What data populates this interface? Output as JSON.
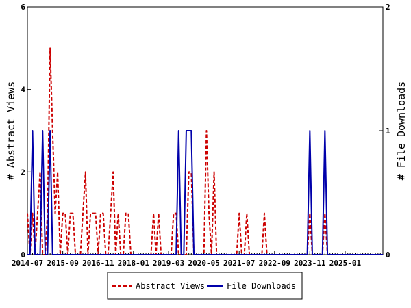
{
  "chart_data": {
    "type": "line",
    "x_tick_labels": [
      "2014-07",
      "2015-09",
      "2016-11",
      "2018-01",
      "2019-03",
      "2020-05",
      "2021-07",
      "2022-09",
      "2023-11",
      "2025-01"
    ],
    "x_tick_times": [
      "2014-07-01",
      "2015-09-01",
      "2016-11-01",
      "2018-01-01",
      "2019-03-01",
      "2020-05-01",
      "2021-07-01",
      "2022-09-01",
      "2023-11-01",
      "2025-01-01"
    ],
    "xlim": [
      "2014-07-01",
      "2026-04-01"
    ],
    "ylabel_left": "# Abstract Views",
    "ylabel_right": "# File Downloads",
    "ylim_left": [
      0,
      6
    ],
    "ylim_right": [
      0,
      2
    ],
    "yticks_left": [
      "0",
      "2",
      "4",
      "6"
    ],
    "yticks_right": [
      "0",
      "1",
      "2"
    ],
    "legend_position": "bottom",
    "series": [
      {
        "name": "Abstract Views",
        "axis": "left",
        "color": "#cc0000",
        "dash": "dashed",
        "points": [
          [
            "2014-07-01",
            1
          ],
          [
            "2014-08-01",
            0
          ],
          [
            "2014-09-01",
            1
          ],
          [
            "2014-10-01",
            0
          ],
          [
            "2014-11-01",
            1
          ],
          [
            "2014-12-01",
            2
          ],
          [
            "2015-01-01",
            0
          ],
          [
            "2015-02-01",
            0
          ],
          [
            "2015-03-01",
            1
          ],
          [
            "2015-04-01",
            5
          ],
          [
            "2015-05-01",
            3
          ],
          [
            "2015-06-01",
            1
          ],
          [
            "2015-07-01",
            2
          ],
          [
            "2015-08-01",
            0
          ],
          [
            "2015-09-01",
            1
          ],
          [
            "2015-10-01",
            1
          ],
          [
            "2015-11-01",
            0
          ],
          [
            "2015-12-01",
            1
          ],
          [
            "2016-01-01",
            1
          ],
          [
            "2016-02-01",
            0
          ],
          [
            "2016-03-01",
            0
          ],
          [
            "2016-04-01",
            0
          ],
          [
            "2016-05-01",
            1
          ],
          [
            "2016-06-01",
            2
          ],
          [
            "2016-07-01",
            0
          ],
          [
            "2016-08-01",
            1
          ],
          [
            "2016-09-01",
            1
          ],
          [
            "2016-10-01",
            1
          ],
          [
            "2016-11-01",
            0
          ],
          [
            "2016-12-01",
            1
          ],
          [
            "2017-01-01",
            1
          ],
          [
            "2017-02-01",
            0
          ],
          [
            "2017-03-01",
            0
          ],
          [
            "2017-04-01",
            1
          ],
          [
            "2017-05-01",
            2
          ],
          [
            "2017-06-01",
            0
          ],
          [
            "2017-07-01",
            1
          ],
          [
            "2017-08-01",
            0
          ],
          [
            "2017-09-01",
            0
          ],
          [
            "2017-10-01",
            1
          ],
          [
            "2017-11-01",
            1
          ],
          [
            "2017-12-01",
            0
          ],
          [
            "2018-01-01",
            0
          ],
          [
            "2018-02-01",
            0
          ],
          [
            "2018-03-01",
            0
          ],
          [
            "2018-04-01",
            0
          ],
          [
            "2018-05-01",
            0
          ],
          [
            "2018-06-01",
            0
          ],
          [
            "2018-07-01",
            0
          ],
          [
            "2018-08-01",
            0
          ],
          [
            "2018-09-01",
            1
          ],
          [
            "2018-10-01",
            0
          ],
          [
            "2018-11-01",
            1
          ],
          [
            "2018-12-01",
            0
          ],
          [
            "2019-01-01",
            0
          ],
          [
            "2019-02-01",
            0
          ],
          [
            "2019-03-01",
            0
          ],
          [
            "2019-04-01",
            0
          ],
          [
            "2019-05-01",
            1
          ],
          [
            "2019-06-01",
            1
          ],
          [
            "2019-07-01",
            0
          ],
          [
            "2019-08-01",
            0
          ],
          [
            "2019-09-01",
            0
          ],
          [
            "2019-10-01",
            0
          ],
          [
            "2019-11-01",
            2
          ],
          [
            "2019-12-01",
            2
          ],
          [
            "2020-01-01",
            0
          ],
          [
            "2020-02-01",
            0
          ],
          [
            "2020-03-01",
            0
          ],
          [
            "2020-04-01",
            0
          ],
          [
            "2020-05-01",
            0
          ],
          [
            "2020-06-01",
            3
          ],
          [
            "2020-07-01",
            1
          ],
          [
            "2020-08-01",
            0
          ],
          [
            "2020-09-01",
            2
          ],
          [
            "2020-10-01",
            0
          ],
          [
            "2020-11-01",
            0
          ],
          [
            "2020-12-01",
            0
          ],
          [
            "2021-01-01",
            0
          ],
          [
            "2021-02-01",
            0
          ],
          [
            "2021-03-01",
            0
          ],
          [
            "2021-04-01",
            0
          ],
          [
            "2021-05-01",
            0
          ],
          [
            "2021-06-01",
            0
          ],
          [
            "2021-07-01",
            1
          ],
          [
            "2021-08-01",
            0
          ],
          [
            "2021-09-01",
            0
          ],
          [
            "2021-10-01",
            1
          ],
          [
            "2021-11-01",
            0
          ],
          [
            "2021-12-01",
            0
          ],
          [
            "2022-01-01",
            0
          ],
          [
            "2022-02-01",
            0
          ],
          [
            "2022-03-01",
            0
          ],
          [
            "2022-04-01",
            0
          ],
          [
            "2022-05-01",
            1
          ],
          [
            "2022-06-01",
            0
          ],
          [
            "2022-07-01",
            0
          ],
          [
            "2022-08-01",
            0
          ],
          [
            "2022-09-01",
            0
          ],
          [
            "2022-10-01",
            0
          ],
          [
            "2022-11-01",
            0
          ],
          [
            "2022-12-01",
            0
          ],
          [
            "2023-01-01",
            0
          ],
          [
            "2023-02-01",
            0
          ],
          [
            "2023-03-01",
            0
          ],
          [
            "2023-04-01",
            0
          ],
          [
            "2023-05-01",
            0
          ],
          [
            "2023-06-01",
            0
          ],
          [
            "2023-07-01",
            0
          ],
          [
            "2023-08-01",
            0
          ],
          [
            "2023-09-01",
            0
          ],
          [
            "2023-10-01",
            0
          ],
          [
            "2023-11-01",
            1
          ],
          [
            "2023-12-01",
            0
          ],
          [
            "2024-01-01",
            0
          ],
          [
            "2024-02-01",
            0
          ],
          [
            "2024-03-01",
            0
          ],
          [
            "2024-04-01",
            0
          ],
          [
            "2024-05-01",
            1
          ],
          [
            "2024-06-01",
            0
          ],
          [
            "2024-07-01",
            0
          ],
          [
            "2024-08-01",
            0
          ],
          [
            "2024-09-01",
            0
          ],
          [
            "2024-10-01",
            0
          ],
          [
            "2024-11-01",
            0
          ],
          [
            "2024-12-01",
            0
          ],
          [
            "2025-01-01",
            0
          ],
          [
            "2025-02-01",
            0
          ],
          [
            "2025-03-01",
            0
          ],
          [
            "2025-04-01",
            0
          ],
          [
            "2025-05-01",
            0
          ],
          [
            "2025-06-01",
            0
          ],
          [
            "2025-07-01",
            0
          ],
          [
            "2025-08-01",
            0
          ],
          [
            "2025-09-01",
            0
          ],
          [
            "2025-10-01",
            0
          ],
          [
            "2025-11-01",
            0
          ],
          [
            "2025-12-01",
            0
          ],
          [
            "2026-01-01",
            0
          ],
          [
            "2026-02-01",
            0
          ],
          [
            "2026-03-01",
            0
          ],
          [
            "2026-04-01",
            0
          ]
        ]
      },
      {
        "name": "File Downloads",
        "axis": "right",
        "color": "#0000aa",
        "dash": "solid",
        "points": [
          [
            "2014-07-01",
            0
          ],
          [
            "2014-08-01",
            0
          ],
          [
            "2014-09-01",
            1
          ],
          [
            "2014-10-01",
            0
          ],
          [
            "2014-11-01",
            0
          ],
          [
            "2014-12-01",
            0
          ],
          [
            "2015-01-01",
            1
          ],
          [
            "2015-02-01",
            0
          ],
          [
            "2015-03-01",
            0
          ],
          [
            "2015-04-01",
            1
          ],
          [
            "2015-05-01",
            0
          ],
          [
            "2015-06-01",
            0
          ],
          [
            "2015-07-01",
            0
          ],
          [
            "2015-08-01",
            0
          ],
          [
            "2015-09-01",
            0
          ],
          [
            "2015-10-01",
            0
          ],
          [
            "2015-11-01",
            0
          ],
          [
            "2015-12-01",
            0
          ],
          [
            "2016-01-01",
            0
          ],
          [
            "2016-02-01",
            0
          ],
          [
            "2016-03-01",
            0
          ],
          [
            "2016-04-01",
            0
          ],
          [
            "2016-05-01",
            0
          ],
          [
            "2016-06-01",
            0
          ],
          [
            "2016-07-01",
            0
          ],
          [
            "2016-08-01",
            0
          ],
          [
            "2016-09-01",
            0
          ],
          [
            "2016-10-01",
            0
          ],
          [
            "2016-11-01",
            0
          ],
          [
            "2016-12-01",
            0
          ],
          [
            "2017-01-01",
            0
          ],
          [
            "2017-02-01",
            0
          ],
          [
            "2017-03-01",
            0
          ],
          [
            "2017-04-01",
            0
          ],
          [
            "2017-05-01",
            0
          ],
          [
            "2017-06-01",
            0
          ],
          [
            "2017-07-01",
            0
          ],
          [
            "2017-08-01",
            0
          ],
          [
            "2017-09-01",
            0
          ],
          [
            "2017-10-01",
            0
          ],
          [
            "2017-11-01",
            0
          ],
          [
            "2017-12-01",
            0
          ],
          [
            "2018-01-01",
            0
          ],
          [
            "2018-02-01",
            0
          ],
          [
            "2018-03-01",
            0
          ],
          [
            "2018-04-01",
            0
          ],
          [
            "2018-05-01",
            0
          ],
          [
            "2018-06-01",
            0
          ],
          [
            "2018-07-01",
            0
          ],
          [
            "2018-08-01",
            0
          ],
          [
            "2018-09-01",
            0
          ],
          [
            "2018-10-01",
            0
          ],
          [
            "2018-11-01",
            0
          ],
          [
            "2018-12-01",
            0
          ],
          [
            "2019-01-01",
            0
          ],
          [
            "2019-02-01",
            0
          ],
          [
            "2019-03-01",
            0
          ],
          [
            "2019-04-01",
            0
          ],
          [
            "2019-05-01",
            0
          ],
          [
            "2019-06-01",
            0
          ],
          [
            "2019-07-01",
            1
          ],
          [
            "2019-08-01",
            0
          ],
          [
            "2019-09-01",
            0
          ],
          [
            "2019-10-01",
            1
          ],
          [
            "2019-11-01",
            1
          ],
          [
            "2019-12-01",
            1
          ],
          [
            "2020-01-01",
            0
          ],
          [
            "2020-02-01",
            0
          ],
          [
            "2020-03-01",
            0
          ],
          [
            "2020-04-01",
            0
          ],
          [
            "2020-05-01",
            0
          ],
          [
            "2020-06-01",
            0
          ],
          [
            "2020-07-01",
            0
          ],
          [
            "2020-08-01",
            0
          ],
          [
            "2020-09-01",
            0
          ],
          [
            "2020-10-01",
            0
          ],
          [
            "2020-11-01",
            0
          ],
          [
            "2020-12-01",
            0
          ],
          [
            "2021-01-01",
            0
          ],
          [
            "2021-02-01",
            0
          ],
          [
            "2021-03-01",
            0
          ],
          [
            "2021-04-01",
            0
          ],
          [
            "2021-05-01",
            0
          ],
          [
            "2021-06-01",
            0
          ],
          [
            "2021-07-01",
            0
          ],
          [
            "2021-08-01",
            0
          ],
          [
            "2021-09-01",
            0
          ],
          [
            "2021-10-01",
            0
          ],
          [
            "2021-11-01",
            0
          ],
          [
            "2021-12-01",
            0
          ],
          [
            "2022-01-01",
            0
          ],
          [
            "2022-02-01",
            0
          ],
          [
            "2022-03-01",
            0
          ],
          [
            "2022-04-01",
            0
          ],
          [
            "2022-05-01",
            0
          ],
          [
            "2022-06-01",
            0
          ],
          [
            "2022-07-01",
            0
          ],
          [
            "2022-08-01",
            0
          ],
          [
            "2022-09-01",
            0
          ],
          [
            "2022-10-01",
            0
          ],
          [
            "2022-11-01",
            0
          ],
          [
            "2022-12-01",
            0
          ],
          [
            "2023-01-01",
            0
          ],
          [
            "2023-02-01",
            0
          ],
          [
            "2023-03-01",
            0
          ],
          [
            "2023-04-01",
            0
          ],
          [
            "2023-05-01",
            0
          ],
          [
            "2023-06-01",
            0
          ],
          [
            "2023-07-01",
            0
          ],
          [
            "2023-08-01",
            0
          ],
          [
            "2023-09-01",
            0
          ],
          [
            "2023-10-01",
            0
          ],
          [
            "2023-11-01",
            1
          ],
          [
            "2023-12-01",
            0
          ],
          [
            "2024-01-01",
            0
          ],
          [
            "2024-02-01",
            0
          ],
          [
            "2024-03-01",
            0
          ],
          [
            "2024-04-01",
            0
          ],
          [
            "2024-05-01",
            1
          ],
          [
            "2024-06-01",
            0
          ],
          [
            "2024-07-01",
            0
          ],
          [
            "2024-08-01",
            0
          ],
          [
            "2024-09-01",
            0
          ],
          [
            "2024-10-01",
            0
          ],
          [
            "2024-11-01",
            0
          ],
          [
            "2024-12-01",
            0
          ],
          [
            "2025-01-01",
            0
          ],
          [
            "2025-02-01",
            0
          ],
          [
            "2025-03-01",
            0
          ],
          [
            "2025-04-01",
            0
          ],
          [
            "2025-05-01",
            0
          ],
          [
            "2025-06-01",
            0
          ],
          [
            "2025-07-01",
            0
          ],
          [
            "2025-08-01",
            0
          ],
          [
            "2025-09-01",
            0
          ],
          [
            "2025-10-01",
            0
          ],
          [
            "2025-11-01",
            0
          ],
          [
            "2025-12-01",
            0
          ],
          [
            "2026-01-01",
            0
          ],
          [
            "2026-02-01",
            0
          ],
          [
            "2026-03-01",
            0
          ],
          [
            "2026-04-01",
            0
          ]
        ]
      }
    ]
  }
}
